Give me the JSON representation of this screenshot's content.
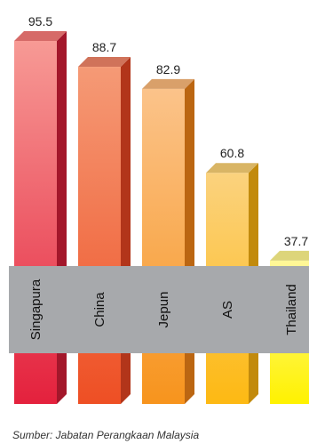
{
  "chart_data": {
    "type": "bar",
    "categories": [
      "Singapura",
      "China",
      "Jepun",
      "AS",
      "Thailand"
    ],
    "values": [
      95.5,
      88.7,
      82.9,
      60.8,
      37.7
    ],
    "value_labels": [
      "95.5",
      "88.7",
      "82.9",
      "60.8",
      "37.7"
    ],
    "title": "",
    "xlabel": "",
    "ylabel": "",
    "ylim": [
      0,
      95.5
    ],
    "grid": false,
    "legend": "none",
    "colors": [
      {
        "front_top": "#f79a95",
        "front_bottom": "#e4213d",
        "side": "#a3172b",
        "cap": "#d66a68"
      },
      {
        "front_top": "#f59a76",
        "front_bottom": "#ee4f24",
        "side": "#b2351a",
        "cap": "#d0735a"
      },
      {
        "front_top": "#fbc38a",
        "front_bottom": "#f7941d",
        "side": "#bb6612",
        "cap": "#d9a06a"
      },
      {
        "front_top": "#fbd27e",
        "front_bottom": "#fdb913",
        "side": "#c28a0c",
        "cap": "#d9b565"
      },
      {
        "front_top": "#fff799",
        "front_bottom": "#fff200",
        "side": "#c2b400",
        "cap": "#ddd57a"
      }
    ],
    "band_color": "#a7a9ac"
  },
  "footer": {
    "source": "Sumber: Jabatan Perangkaan Malaysia"
  }
}
